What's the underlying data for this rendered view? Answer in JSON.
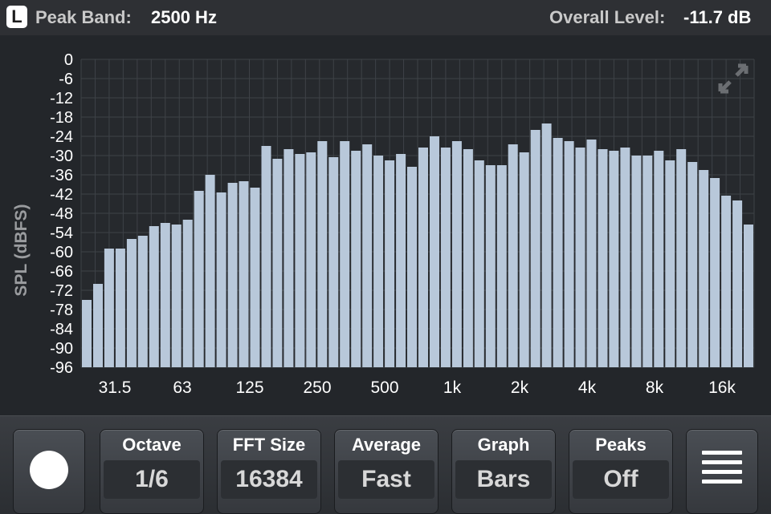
{
  "header": {
    "channel": "L",
    "peak_band_label": "Peak Band:",
    "peak_band_value": "2500 Hz",
    "overall_label": "Overall Level:",
    "overall_value": "-11.7 dB"
  },
  "chart_data": {
    "type": "bar",
    "ylabel": "SPL (dBFS)",
    "ylim": [
      -96,
      0
    ],
    "yticks": [
      "0",
      "-6",
      "-12",
      "-18",
      "-24",
      "-30",
      "-36",
      "-42",
      "-48",
      "-54",
      "-60",
      "-66",
      "-72",
      "-78",
      "-84",
      "-90",
      "-96"
    ],
    "x_tick_labels": [
      "31.5",
      "63",
      "125",
      "250",
      "500",
      "1k",
      "2k",
      "4k",
      "8k",
      "16k"
    ],
    "grid": true,
    "values": [
      -75,
      -70,
      -59,
      -59,
      -56,
      -55,
      -52,
      -51,
      -51.5,
      -50,
      -41,
      -36,
      -41.5,
      -38.5,
      -38,
      -40,
      -27,
      -31,
      -28,
      -29.5,
      -29,
      -25.5,
      -30.5,
      -25.5,
      -28.5,
      -26.5,
      -30,
      -31.5,
      -29.5,
      -33.5,
      -27.5,
      -24,
      -27.5,
      -25.5,
      -28,
      -31.5,
      -33,
      -33,
      -26.5,
      -29,
      -22,
      -20,
      -24.5,
      -25.5,
      -27.5,
      -25,
      -28,
      -28.5,
      -27.5,
      -30,
      -30,
      -28.5,
      -31.5,
      -28,
      -32,
      -34.5,
      -37,
      -42.5,
      -44,
      -51.5
    ],
    "bar_color": "#b8c8da",
    "grid_color": "#3e4247"
  },
  "toolbar": {
    "record_icon": "record-icon",
    "menu_icon": "menu-icon",
    "buttons": [
      {
        "label": "Octave",
        "value": "1/6"
      },
      {
        "label": "FFT Size",
        "value": "16384"
      },
      {
        "label": "Average",
        "value": "Fast"
      },
      {
        "label": "Graph",
        "value": "Bars"
      },
      {
        "label": "Peaks",
        "value": "Off"
      }
    ]
  }
}
